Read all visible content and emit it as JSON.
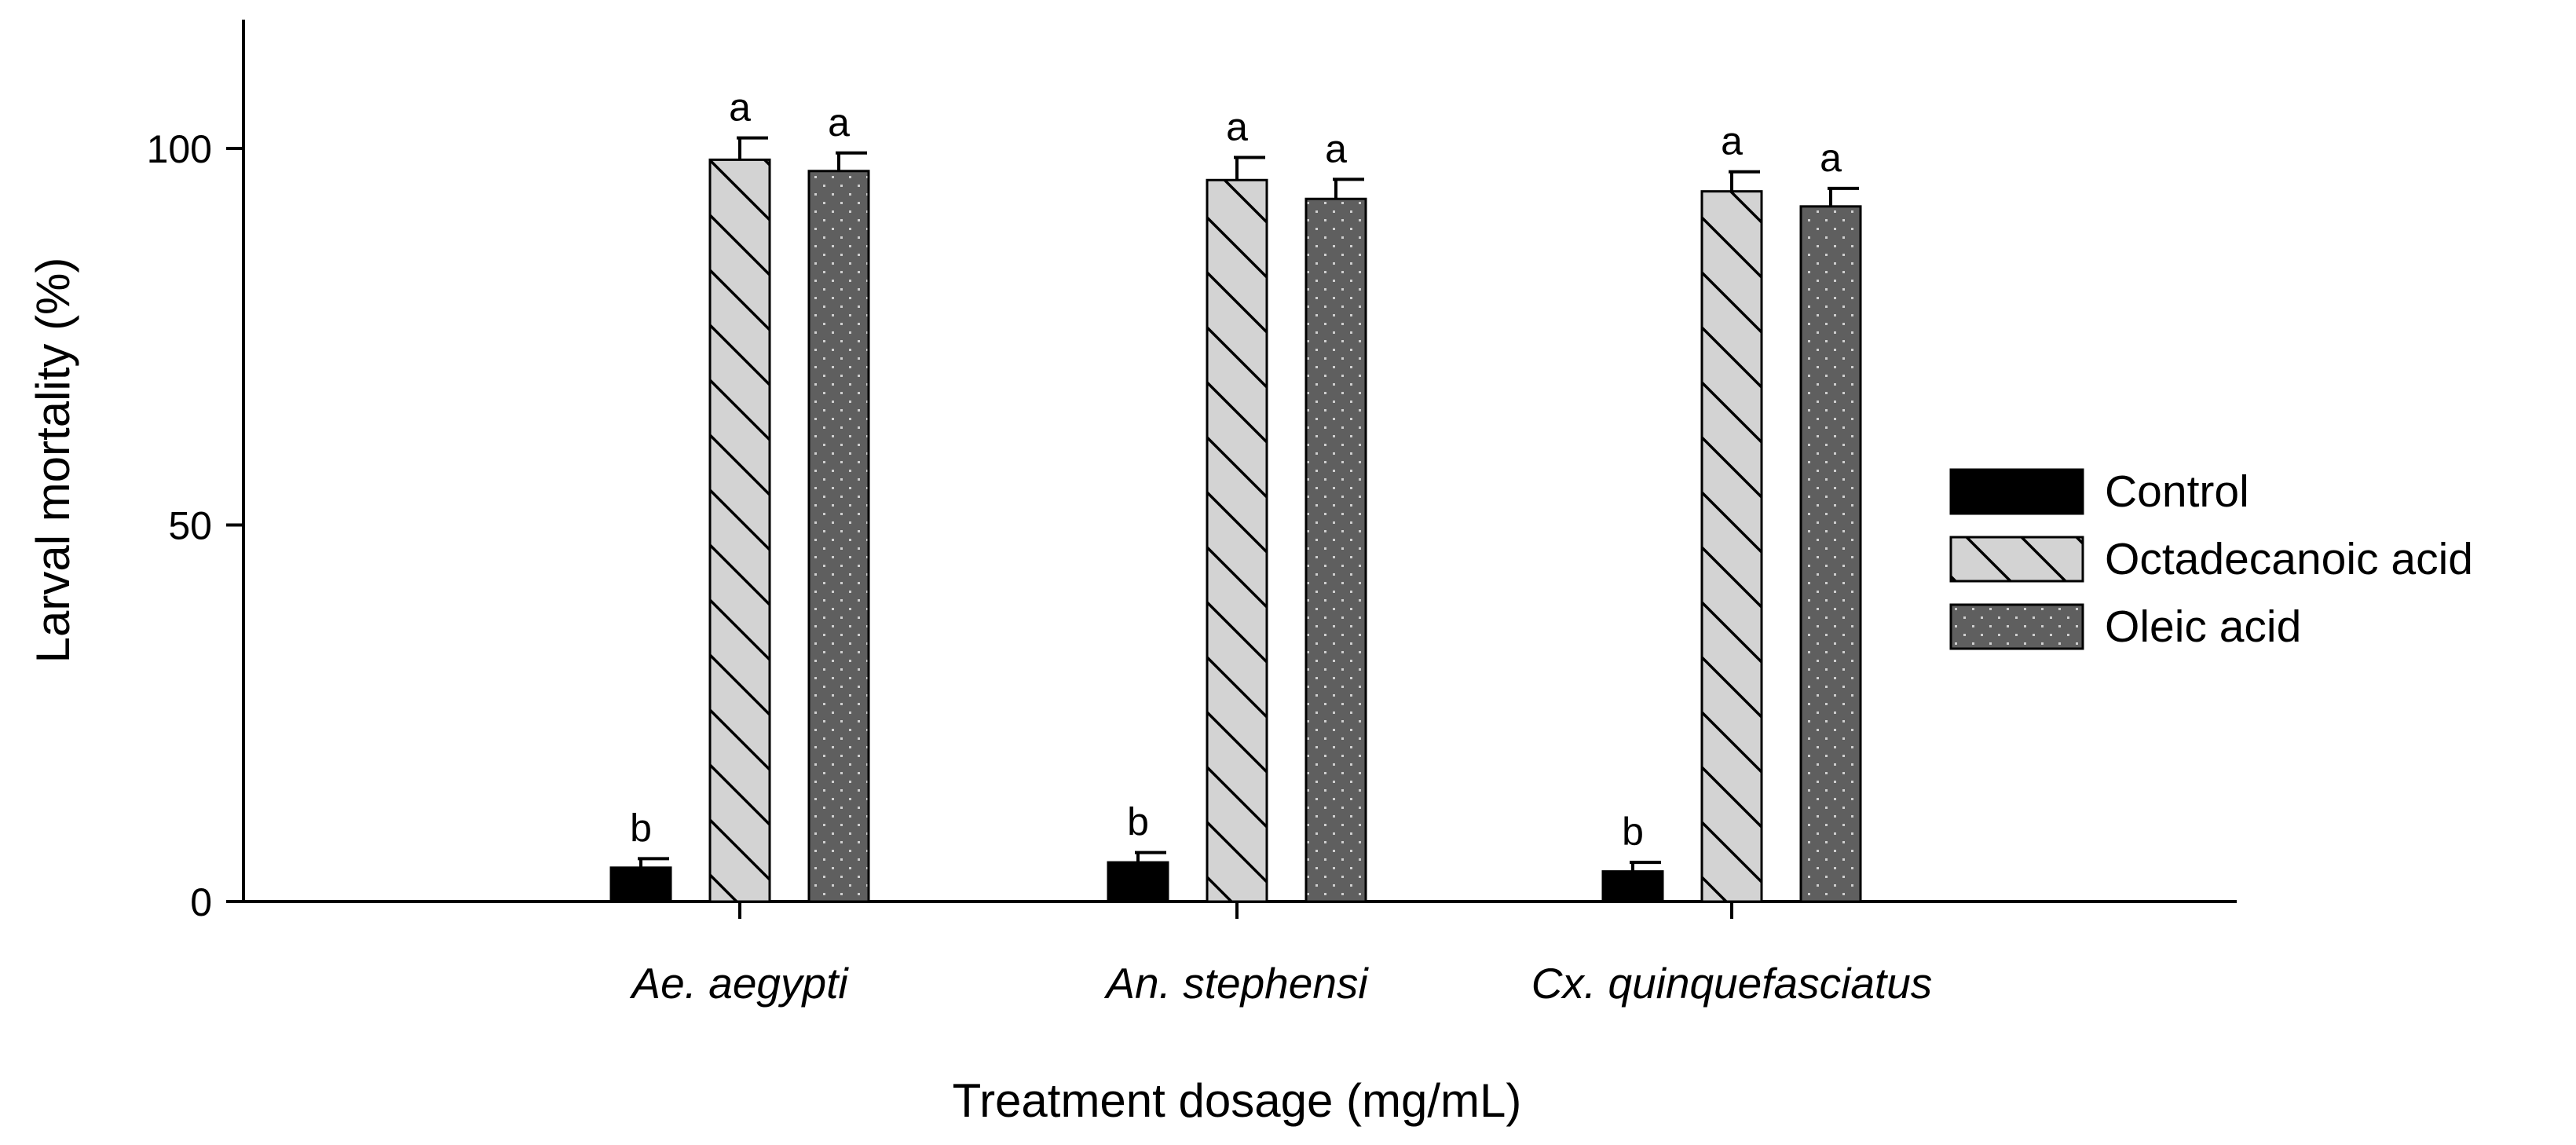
{
  "chart_data": {
    "type": "bar",
    "title": "",
    "xlabel": "Treatment dosage (mg/mL)",
    "ylabel": "Larval mortality (%)",
    "ylim": [
      0,
      116
    ],
    "yticks": [
      "0",
      "50",
      "100"
    ],
    "grid": false,
    "legend_position": "right",
    "categories": [
      "Ae. aegypti",
      "An. stephensi",
      "Cx. quinquefasciatus"
    ],
    "series": [
      {
        "name": "Control",
        "color": "#000000",
        "pattern": "solid",
        "values": [
          4.5,
          5.2,
          4.0
        ],
        "errors": [
          1.2,
          1.3,
          1.2
        ],
        "significance": [
          "b",
          "b",
          "b"
        ]
      },
      {
        "name": "Octadecanoic acid",
        "color": "#d3d3d3",
        "pattern": "diagonal-hatch",
        "values": [
          98.5,
          95.8,
          94.3
        ],
        "errors": [
          2.9,
          3.0,
          2.6
        ],
        "significance": [
          "a",
          "a",
          "a"
        ]
      },
      {
        "name": "Oleic acid",
        "color": "#5f5f5f",
        "pattern": "dots",
        "values": [
          97.0,
          93.3,
          92.3
        ],
        "errors": [
          2.4,
          2.6,
          2.4
        ],
        "significance": [
          "a",
          "a",
          "a"
        ]
      }
    ]
  }
}
